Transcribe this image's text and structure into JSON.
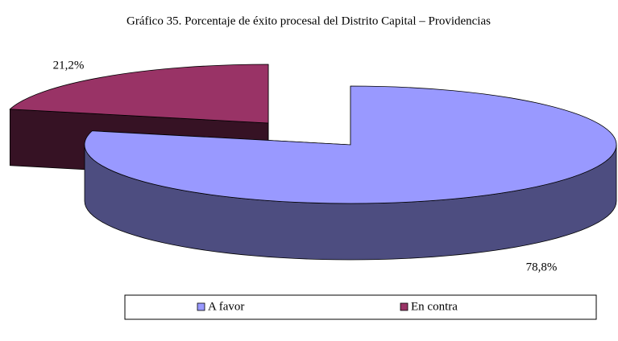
{
  "chart_data": {
    "type": "pie",
    "title": "Gráfico 35. Porcentaje de éxito procesal del Distrito Capital – Providencias",
    "categories": [
      "A favor",
      "En contra"
    ],
    "values": [
      78.8,
      21.2
    ],
    "value_labels": [
      "78,8%",
      "21,2%"
    ],
    "colors": [
      "#9999ff",
      "#993366"
    ],
    "legend": "bottom"
  }
}
